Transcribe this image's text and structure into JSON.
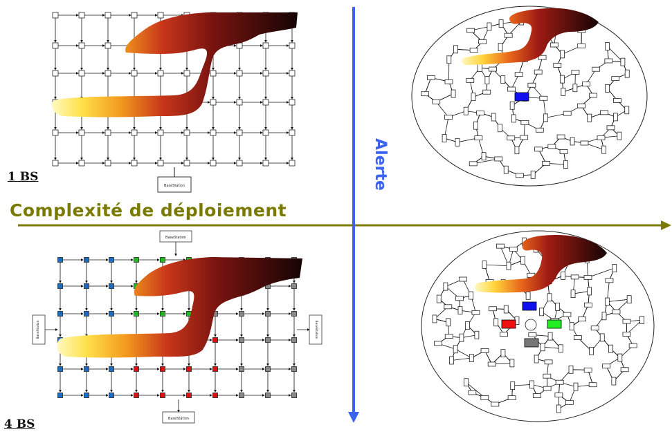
{
  "labels": {
    "bs_top": "1 BS",
    "bs_bottom": "4 BS",
    "horizontal_axis": "Complexité de déploiement",
    "vertical_axis": "Alerte",
    "base_station_top": "BaseStation",
    "base_station_bottom": "BaseStation",
    "base_station_left": "BaseStation",
    "base_station_right": "BaseStation",
    "base_station_upper": "BaseStation"
  },
  "colors": {
    "axis_horizontal": "#7a7a00",
    "axis_vertical": "#3a64f0",
    "node_blue": "#1a6fc4",
    "node_green": "#22bb22",
    "node_red": "#dd1111",
    "node_gray": "#888888",
    "hub_blue": "#1010ee",
    "hub_red": "#ee1111",
    "hub_green": "#22ee22",
    "hub_gray": "#777777"
  }
}
